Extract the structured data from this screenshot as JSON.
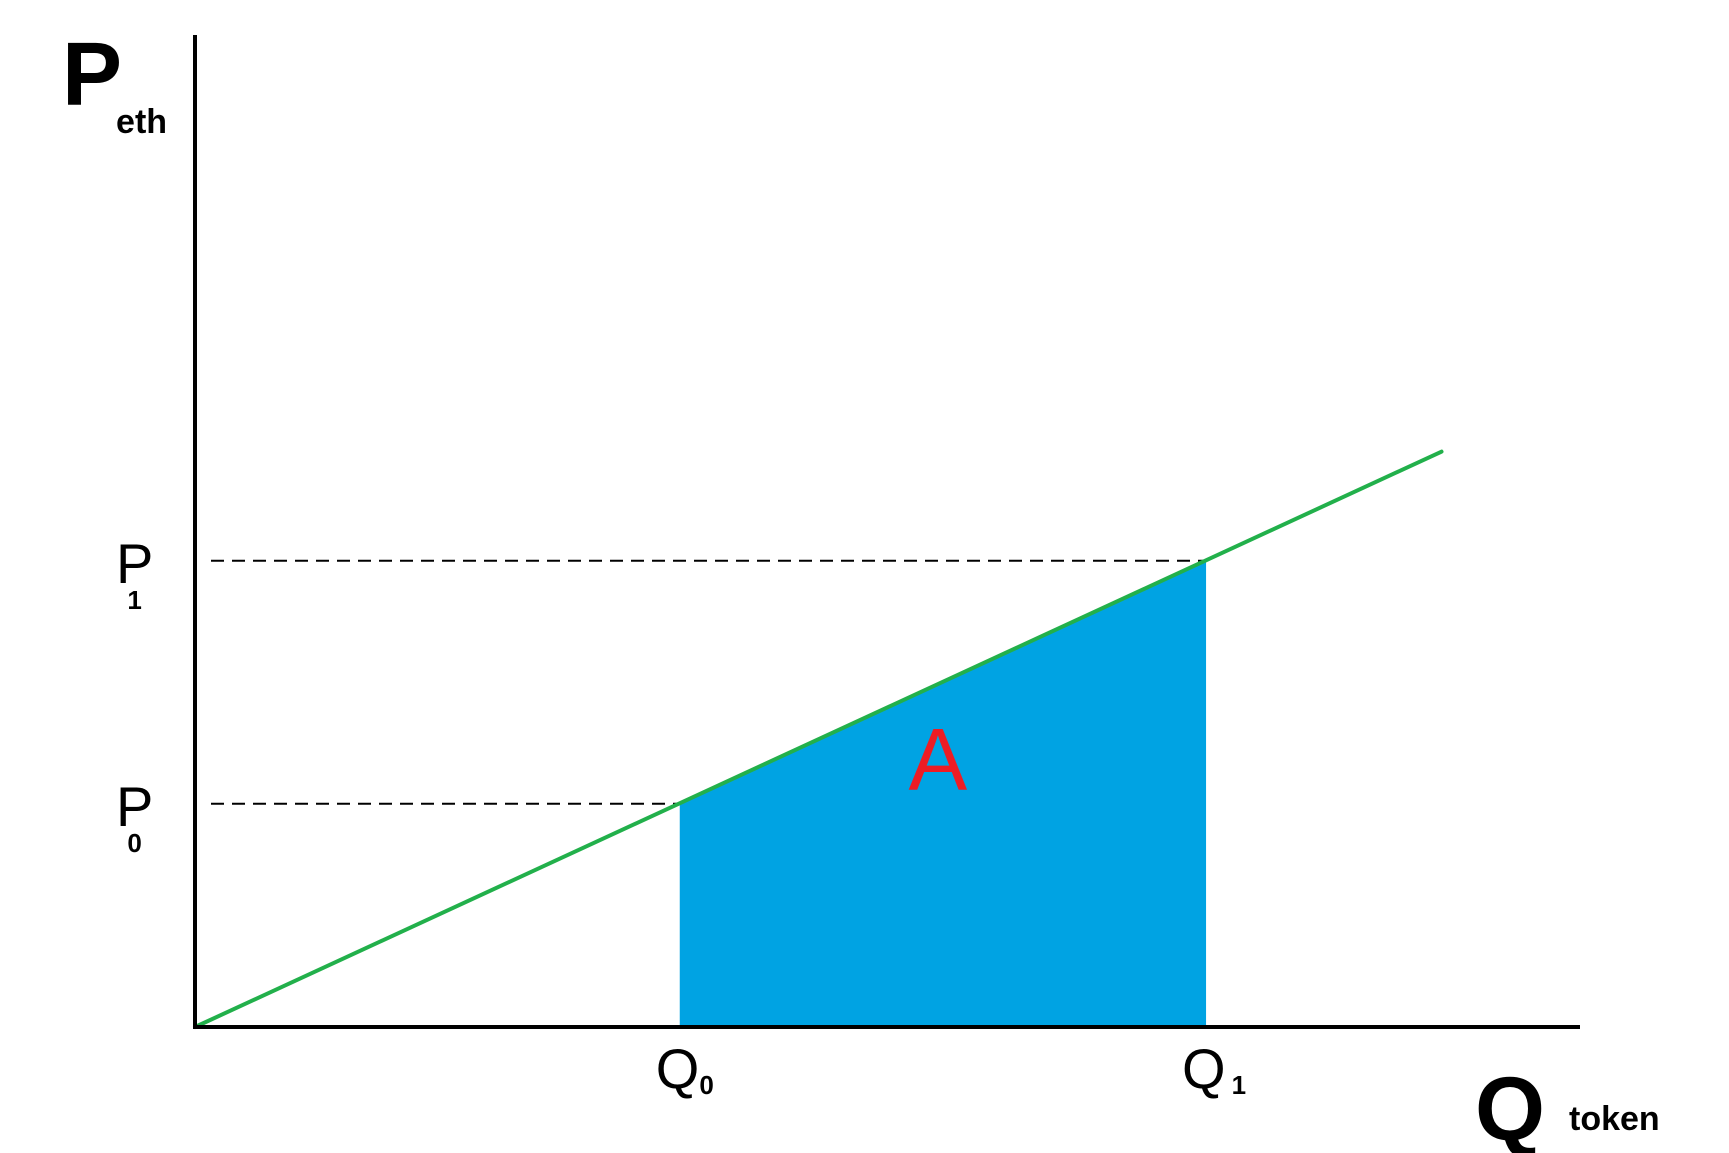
{
  "chart_data": {
    "type": "line",
    "title": "",
    "xlabel": {
      "main": "Q",
      "sub": "token"
    },
    "ylabel": {
      "main": "P",
      "sub": "eth"
    },
    "xlim": [
      0,
      1
    ],
    "ylim": [
      0,
      1
    ],
    "grid": false,
    "series": [
      {
        "x": [
          0,
          0.9
        ],
        "y": [
          0,
          0.58
        ]
      }
    ],
    "x_ticks": [
      {
        "main": "Q",
        "sub": "0",
        "value": 0.35
      },
      {
        "main": "Q",
        "sub": "1",
        "value": 0.73
      }
    ],
    "y_ticks": [
      {
        "main": "P",
        "sub": "0",
        "value": 0.225
      },
      {
        "main": "P",
        "sub": "1",
        "value": 0.47
      }
    ],
    "shaded_area": {
      "label": "A",
      "x_from": 0.35,
      "x_to": 0.73
    },
    "colors": {
      "line": "#22b04b",
      "area": "#00a3e3",
      "area_label": "#ed1c24",
      "axes": "#000000",
      "guides": "#000000"
    }
  }
}
